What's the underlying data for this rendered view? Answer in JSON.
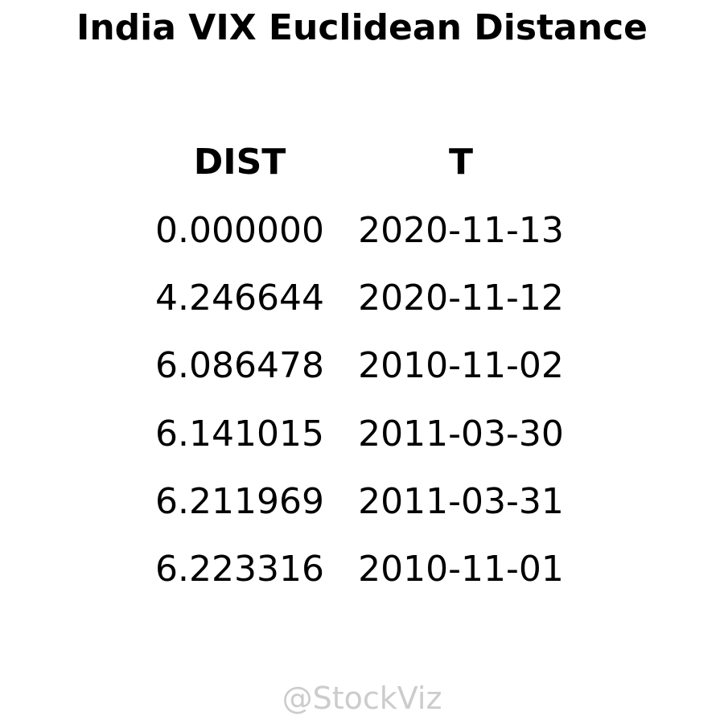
{
  "chart_data": {
    "type": "table",
    "title": "India VIX Euclidean Distance",
    "columns": [
      "DIST",
      "T"
    ],
    "rows": [
      [
        "0.000000",
        "2020-11-13"
      ],
      [
        "4.246644",
        "2020-11-12"
      ],
      [
        "6.086478",
        "2010-11-02"
      ],
      [
        "6.141015",
        "2011-03-30"
      ],
      [
        "6.211969",
        "2011-03-31"
      ],
      [
        "6.223316",
        "2010-11-01"
      ]
    ]
  },
  "watermark": "@StockViz"
}
